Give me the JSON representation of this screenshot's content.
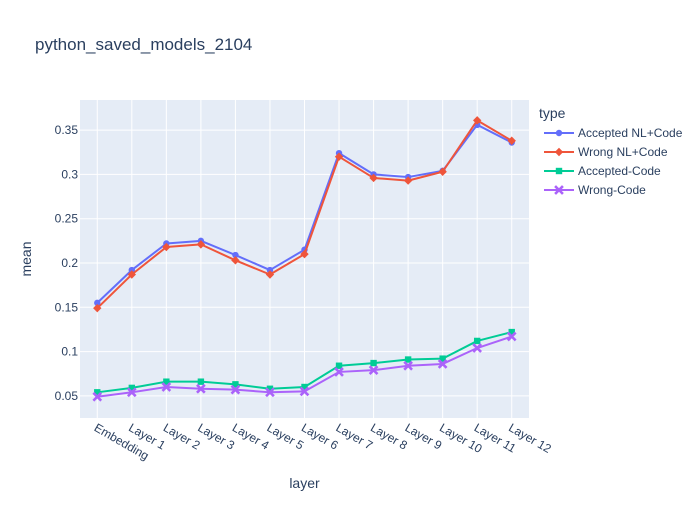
{
  "chart_data": {
    "type": "line",
    "title": "python_saved_models_2104",
    "xlabel": "layer",
    "ylabel": "mean",
    "legend_title": "type",
    "legend_position": "top-right",
    "grid": true,
    "plot_bg": "#e5ecf6",
    "ylim": [
      0.025,
      0.384
    ],
    "yticks": [
      0.05,
      0.1,
      0.15,
      0.2,
      0.25,
      0.3,
      0.35
    ],
    "ytick_labels": [
      "0.05",
      "0.1",
      "0.15",
      "0.2",
      "0.25",
      "0.3",
      "0.35"
    ],
    "categories": [
      "Embedding",
      "Layer 1",
      "Layer 2",
      "Layer 3",
      "Layer 4",
      "Layer 5",
      "Layer 6",
      "Layer 7",
      "Layer 8",
      "Layer 9",
      "Layer 10",
      "Layer 11",
      "Layer 12"
    ],
    "series": [
      {
        "name": "Accepted NL+Code",
        "color": "#636efa",
        "marker": "circle",
        "values": [
          0.155,
          0.192,
          0.222,
          0.225,
          0.209,
          0.192,
          0.215,
          0.324,
          0.3,
          0.297,
          0.304,
          0.356,
          0.336
        ]
      },
      {
        "name": "Wrong NL+Code",
        "color": "#ef553b",
        "marker": "diamond",
        "values": [
          0.149,
          0.187,
          0.218,
          0.221,
          0.203,
          0.187,
          0.21,
          0.32,
          0.296,
          0.293,
          0.303,
          0.361,
          0.338
        ]
      },
      {
        "name": "Accepted-Code",
        "color": "#00cc96",
        "marker": "square",
        "values": [
          0.054,
          0.059,
          0.066,
          0.066,
          0.063,
          0.058,
          0.06,
          0.084,
          0.087,
          0.091,
          0.092,
          0.112,
          0.122
        ]
      },
      {
        "name": "Wrong-Code",
        "color": "#ab63fa",
        "marker": "x",
        "values": [
          0.049,
          0.054,
          0.06,
          0.058,
          0.057,
          0.054,
          0.055,
          0.077,
          0.079,
          0.084,
          0.086,
          0.104,
          0.117
        ]
      }
    ]
  }
}
